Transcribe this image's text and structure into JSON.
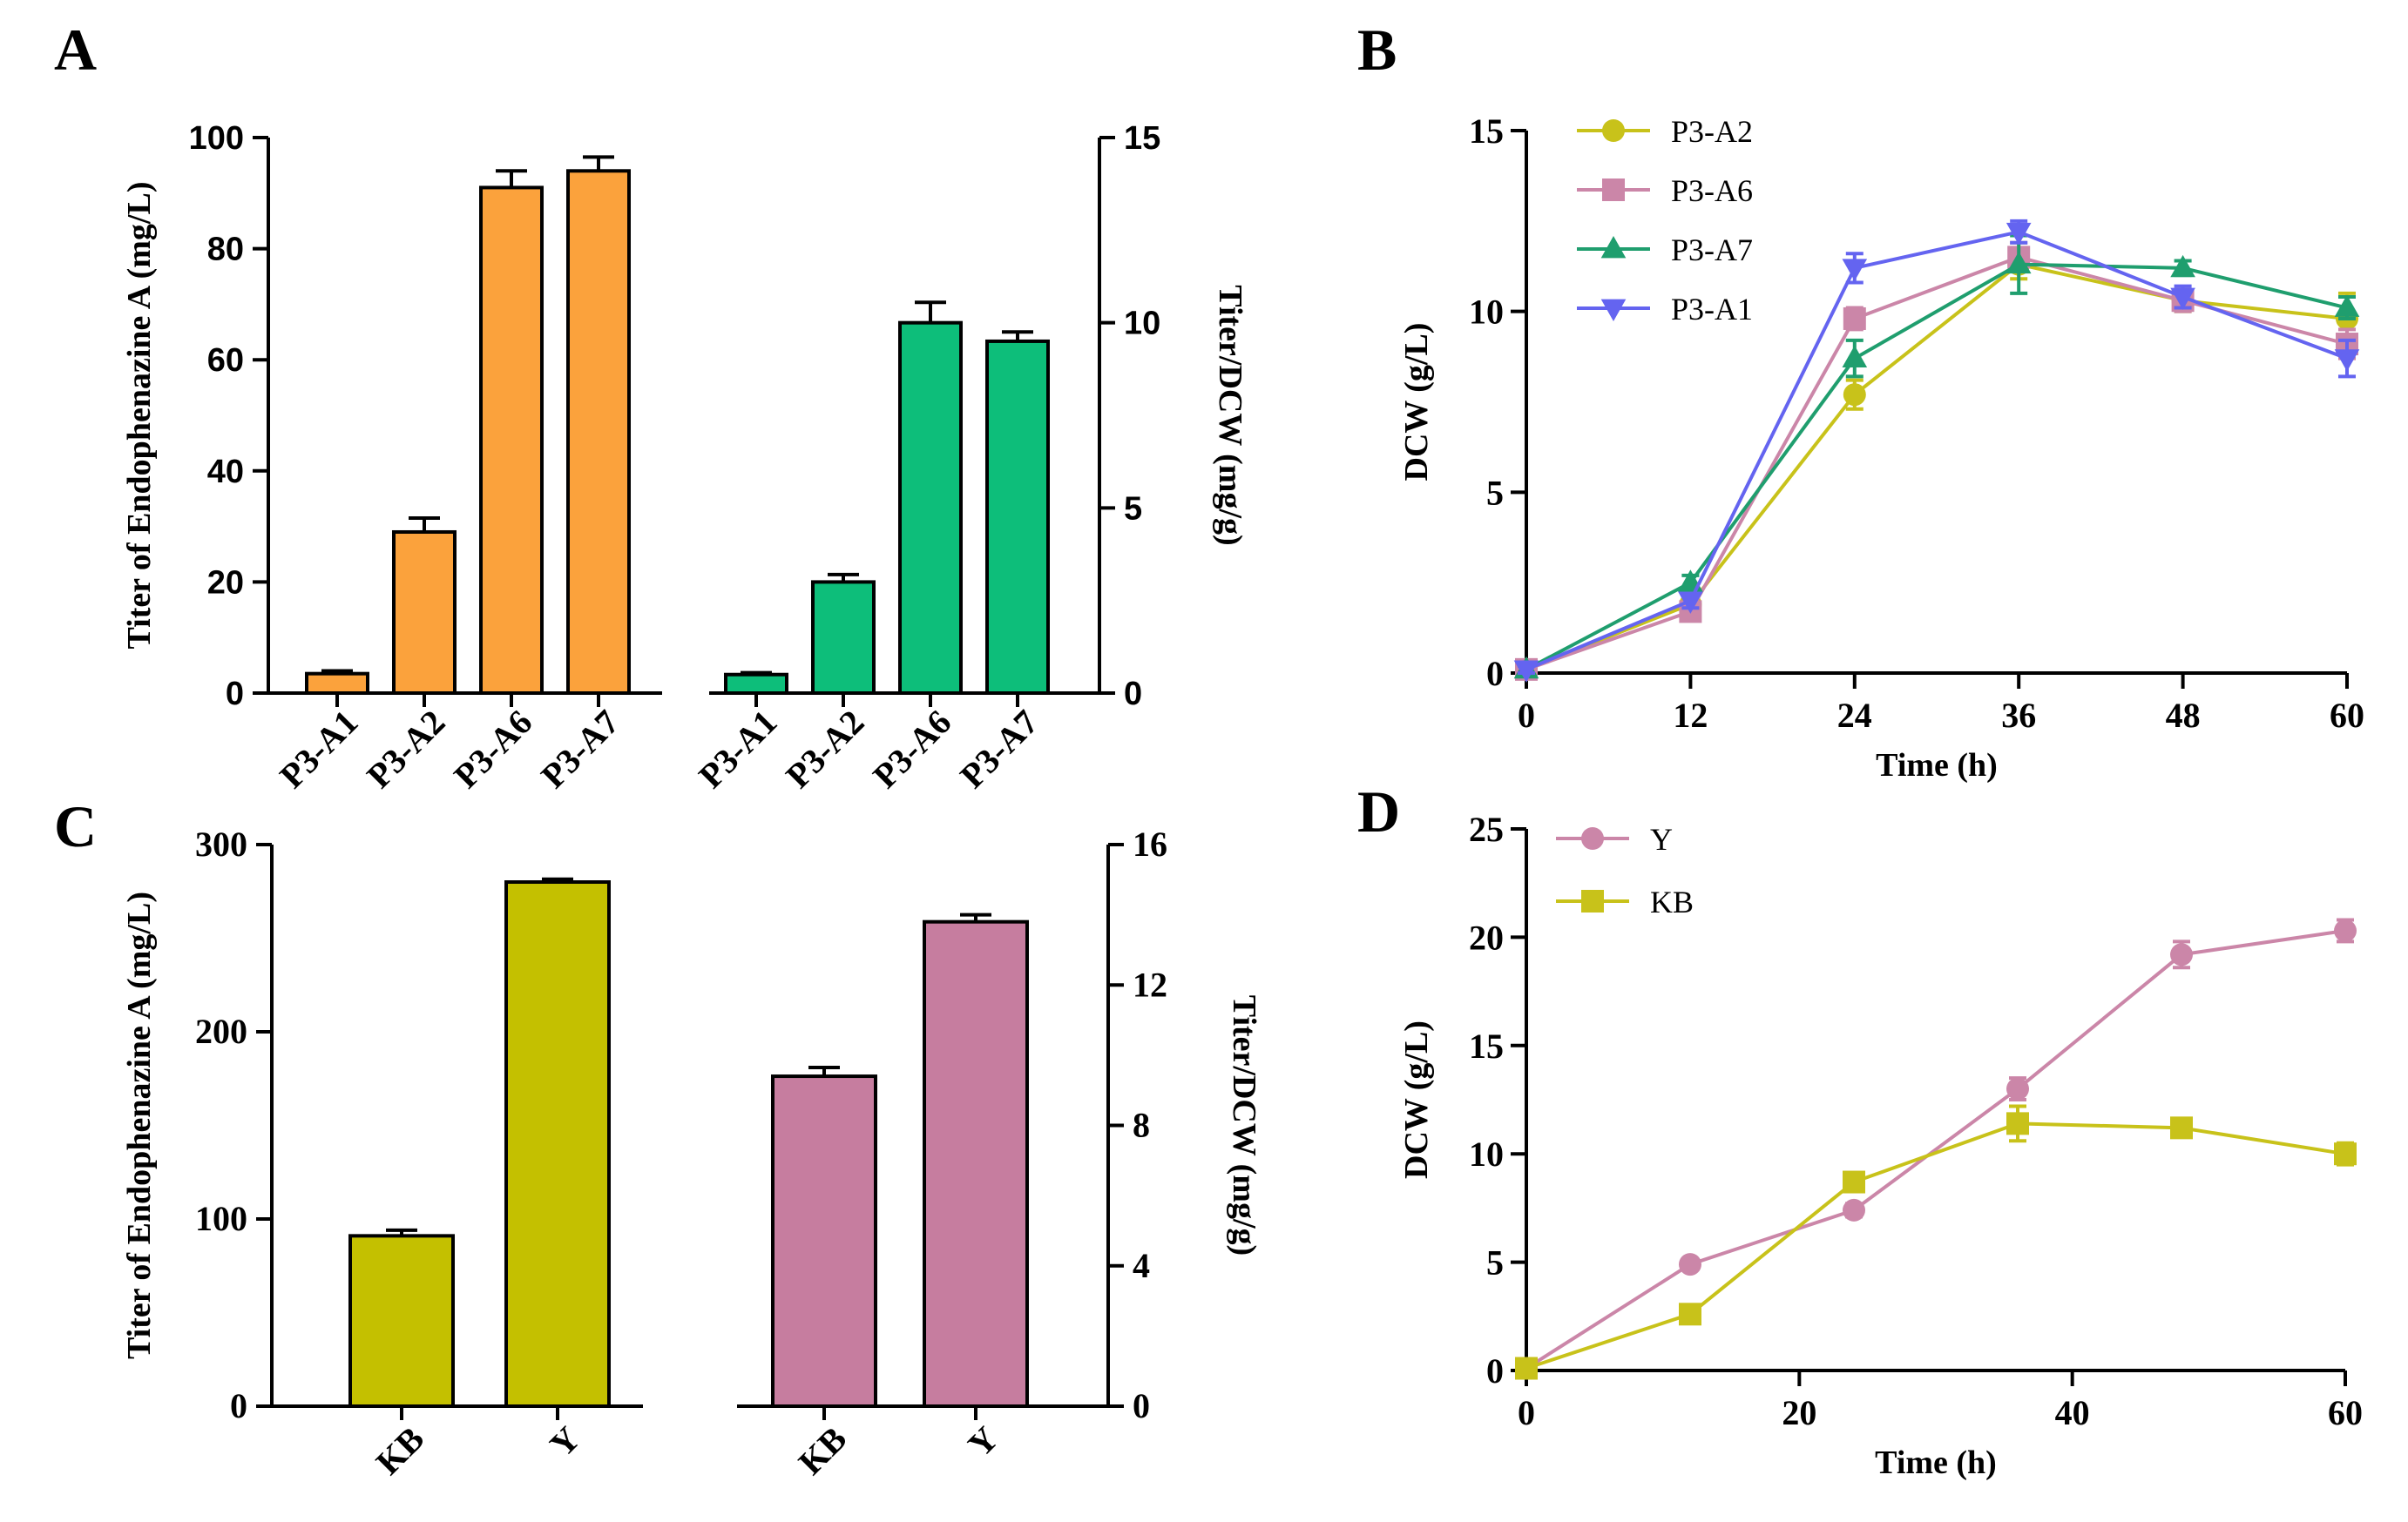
{
  "colors": {
    "orange": "#FBA23C",
    "green": "#0DBE7A",
    "olive": "#C4C000",
    "mauve": "#C67D9F",
    "lineYellow": "#C8C21A",
    "linePink": "#CB86A8",
    "lineTeal": "#1F9E6E",
    "lineBlue": "#6464F0"
  },
  "chart_data": [
    {
      "panel": "A",
      "type": "bar",
      "ylabel": "Titer of  Endophenazine A (mg/L)",
      "y2label": "Titer/DCW (mg/g)",
      "ylim": [
        0,
        100
      ],
      "yticks": [
        "0",
        "20",
        "40",
        "60",
        "80",
        "100"
      ],
      "y2lim": [
        0,
        15
      ],
      "y2ticks": [
        "0",
        "5",
        "10",
        "15"
      ],
      "categories": [
        "P3-A1",
        "P3-A2",
        "P3-A6",
        "P3-A7"
      ],
      "series": [
        {
          "name": "Titer",
          "axis": "left",
          "values": [
            3.5,
            29,
            91,
            94
          ],
          "errors": [
            0.5,
            2.5,
            3.0,
            2.5
          ]
        },
        {
          "name": "Titer/DCW",
          "axis": "right",
          "values": [
            0.5,
            3.0,
            10.0,
            9.5
          ],
          "errors": [
            0.05,
            0.2,
            0.55,
            0.25
          ]
        }
      ]
    },
    {
      "panel": "B",
      "type": "line",
      "xlabel": "Time (h)",
      "ylabel": "DCW (g/L)",
      "xlim": [
        0,
        60
      ],
      "xticks": [
        "0",
        "12",
        "24",
        "36",
        "48",
        "60"
      ],
      "ylim": [
        0,
        15
      ],
      "yticks": [
        "0",
        "5",
        "10",
        "15"
      ],
      "x": [
        0,
        12,
        24,
        36,
        48,
        60
      ],
      "legend_position": "top-left",
      "series": [
        {
          "name": "P3-A2",
          "marker": "circle",
          "values": [
            0.1,
            1.9,
            7.7,
            11.3,
            10.3,
            9.8
          ],
          "errors": [
            0.1,
            0.2,
            0.4,
            0.4,
            0.3,
            0.7
          ]
        },
        {
          "name": "P3-A6",
          "marker": "square",
          "values": [
            0.1,
            1.7,
            9.8,
            11.5,
            10.3,
            9.1
          ],
          "errors": [
            0.1,
            0.2,
            0.3,
            0.4,
            0.3,
            0.4
          ]
        },
        {
          "name": "P3-A7",
          "marker": "triangle-up",
          "values": [
            0.1,
            2.5,
            8.7,
            11.3,
            11.2,
            10.1
          ],
          "errors": [
            0.1,
            0.2,
            0.5,
            0.8,
            0.2,
            0.3
          ]
        },
        {
          "name": "P3-A1",
          "marker": "triangle-down",
          "values": [
            0.1,
            2.0,
            11.2,
            12.2,
            10.4,
            8.7
          ],
          "errors": [
            0.1,
            0.2,
            0.4,
            0.3,
            0.3,
            0.5
          ]
        }
      ]
    },
    {
      "panel": "C",
      "type": "bar",
      "ylabel": "Titer of  Endophenazine A (mg/L)",
      "y2label": "Titer/DCW (mg/g)",
      "ylim": [
        0,
        300
      ],
      "yticks": [
        "0",
        "100",
        "200",
        "300"
      ],
      "y2lim": [
        0,
        16
      ],
      "y2ticks": [
        "0",
        "4",
        "8",
        "12",
        "16"
      ],
      "categories": [
        "KB",
        "Y"
      ],
      "series": [
        {
          "name": "Titer",
          "axis": "left",
          "values": [
            91,
            280
          ],
          "errors": [
            3,
            1.5
          ]
        },
        {
          "name": "Titer/DCW",
          "axis": "right",
          "values": [
            9.4,
            13.8
          ],
          "errors": [
            0.25,
            0.2
          ]
        }
      ]
    },
    {
      "panel": "D",
      "type": "line",
      "xlabel": "Time (h)",
      "ylabel": "DCW (g/L)",
      "xlim": [
        0,
        60
      ],
      "xticks": [
        "0",
        "20",
        "40",
        "60"
      ],
      "ylim": [
        0,
        25
      ],
      "yticks": [
        "0",
        "5",
        "10",
        "15",
        "20",
        "25"
      ],
      "x": [
        0,
        12,
        24,
        36,
        48,
        60
      ],
      "legend_position": "top-left",
      "series": [
        {
          "name": "Y",
          "marker": "circle",
          "values": [
            0.1,
            4.9,
            7.4,
            13.0,
            19.2,
            20.3
          ],
          "errors": [
            0.1,
            0.2,
            0.3,
            0.5,
            0.6,
            0.5
          ]
        },
        {
          "name": "KB",
          "marker": "square",
          "values": [
            0.1,
            2.6,
            8.7,
            11.4,
            11.2,
            10.0
          ],
          "errors": [
            0.1,
            0.2,
            0.3,
            0.8,
            0.3,
            0.5
          ]
        }
      ]
    }
  ]
}
